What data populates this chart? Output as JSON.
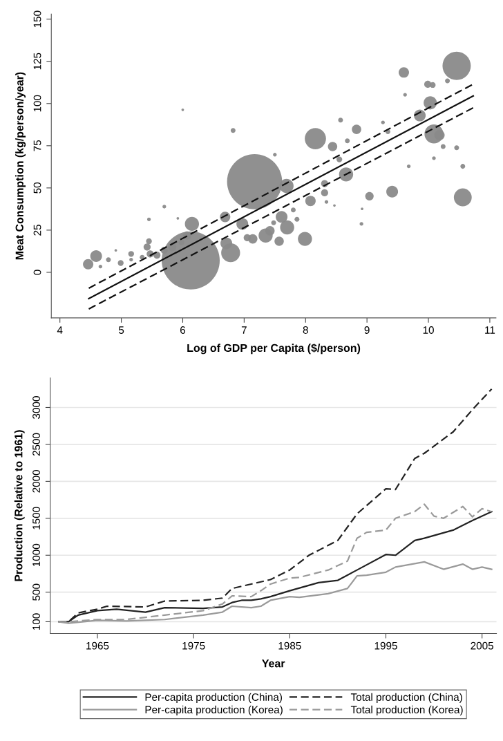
{
  "chart_data": [
    {
      "type": "bubble",
      "xlabel": "Log of GDP per Capita ($/person)",
      "ylabel": "Meat Consumption (kg/person/year)",
      "xlim": [
        3.86,
        11.1
      ],
      "xticks": [
        4,
        5,
        6,
        7,
        8,
        9,
        10,
        11
      ],
      "ylim": [
        -27,
        153
      ],
      "yticks": [
        0,
        25,
        50,
        75,
        100,
        125,
        150
      ],
      "grid": false,
      "legend": false,
      "series": [
        {
          "type": "bubble",
          "color": "#8a8a8a",
          "x": [
            4.46,
            4.59,
            4.66,
            4.79,
            4.91,
            4.99,
            5.16,
            5.16,
            5.34,
            5.42,
            5.45,
            5.45,
            5.47,
            5.58,
            5.7,
            5.7,
            5.83,
            5.92,
            6.0,
            5.98,
            6.07,
            6.15,
            6.13,
            7.17,
            6.69,
            6.82,
            6.78,
            6.71,
            6.97,
            7.05,
            7.14,
            7.35,
            7.42,
            7.48,
            7.5,
            7.57,
            7.61,
            7.7,
            7.69,
            7.8,
            7.86,
            7.99,
            8.08,
            8.16,
            8.31,
            8.31,
            8.34,
            8.44,
            8.47,
            8.57,
            8.55,
            8.66,
            8.68,
            8.83,
            8.91,
            8.92,
            9.04,
            9.26,
            9.34,
            9.41,
            9.6,
            9.62,
            9.68,
            9.86,
            9.99,
            10.07,
            10.03,
            10.09,
            10.18,
            10.09,
            10.24,
            10.31,
            10.46,
            10.46,
            10.56,
            10.56
          ],
          "values": [
            4.8,
            9.6,
            3.4,
            7.5,
            13,
            5.5,
            10.9,
            7.5,
            8.9,
            15,
            18.4,
            31.4,
            10.9,
            10.2,
            38.9,
            13,
            15,
            32,
            96.3,
            17.7,
            21.8,
            28.7,
            7,
            53.7,
            32.8,
            84,
            11.6,
            17.2,
            28.7,
            20.5,
            19.8,
            21.8,
            24.6,
            29.4,
            69.7,
            18.4,
            32.8,
            26.6,
            51.2,
            36.9,
            31.4,
            19.8,
            42.3,
            79.2,
            52.6,
            47.1,
            41.7,
            74.5,
            39.6,
            90.2,
            66.9,
            58,
            77.9,
            84.7,
            28.7,
            37.6,
            45.1,
            88.8,
            83.3,
            47.8,
            118.4,
            105.2,
            62.8,
            92.9,
            111.4,
            111,
            100.4,
            82,
            81.3,
            67.6,
            74.5,
            113.4,
            122.3,
            73.8,
            62.8,
            44.4
          ],
          "sizes": [
            0.032,
            0.041,
            0.004,
            0.007,
            0.002,
            0.01,
            0.01,
            0.004,
            0.007,
            0.015,
            0.01,
            0.004,
            0.015,
            0.015,
            0.004,
            0.015,
            0.021,
            0.002,
            0.002,
            0.01,
            0.021,
            0.059,
            1,
            0.9,
            0.032,
            0.007,
            0.106,
            0.041,
            0.041,
            0.015,
            0.026,
            0.059,
            0.026,
            0.007,
            0.004,
            0.026,
            0.041,
            0.059,
            0.059,
            0.007,
            0.007,
            0.059,
            0.032,
            0.134,
            0.015,
            0.015,
            0.004,
            0.026,
            0.002,
            0.007,
            0.01,
            0.059,
            0.007,
            0.026,
            0.004,
            0.002,
            0.021,
            0.004,
            0.007,
            0.041,
            0.032,
            0.004,
            0.004,
            0.041,
            0.015,
            0.01,
            0.052,
            0.106,
            0.032,
            0.004,
            0.007,
            0.007,
            0.238,
            0.007,
            0.007,
            0.095
          ]
        },
        {
          "type": "line",
          "color": "#111111",
          "line_style": "solid",
          "x": [
            4.47,
            10.73
          ],
          "values": [
            -15.6,
            104.5
          ]
        },
        {
          "type": "line",
          "color": "#111111",
          "line_style": "dashed",
          "x": [
            4.47,
            10.73
          ],
          "values": [
            -9.4,
            111.5
          ]
        },
        {
          "type": "line",
          "color": "#111111",
          "line_style": "dashed",
          "x": [
            4.47,
            10.73
          ],
          "values": [
            -21.7,
            97.5
          ]
        }
      ]
    },
    {
      "type": "line",
      "xlabel": "Year",
      "ylabel": "Production (Relative to 1961)",
      "xlim": [
        1960.1,
        2006.5
      ],
      "xticks": [
        1965,
        1975,
        1985,
        1995,
        2005
      ],
      "ylim": [
        -60,
        3400
      ],
      "yticks": [
        100,
        500,
        1000,
        1500,
        2000,
        2500,
        3000
      ],
      "grid": "y",
      "legend": "bottom",
      "series": [
        {
          "name": "Per-capita production (China)",
          "color": "#222222",
          "line_style": "solid",
          "x": [
            1961,
            1962,
            1963,
            1965,
            1967,
            1970,
            1972,
            1976,
            1978,
            1979,
            1980,
            1981,
            1982,
            1983,
            1985,
            1988,
            1990,
            1992,
            1995,
            1996,
            1998,
            1999,
            2002,
            2004,
            2006
          ],
          "values": [
            100,
            100,
            190,
            250,
            270,
            230,
            290,
            280,
            300,
            360,
            390,
            390,
            410,
            440,
            520,
            630,
            660,
            800,
            1010,
            1000,
            1200,
            1230,
            1340,
            1470,
            1590
          ]
        },
        {
          "name": "Total production (China)",
          "color": "#222222",
          "line_style": "dashed",
          "x": [
            1961,
            1962,
            1963,
            1965,
            1966,
            1970,
            1972,
            1976,
            1978,
            1979,
            1982,
            1983,
            1985,
            1987,
            1990,
            1992,
            1995,
            1996,
            1998,
            1999,
            2002,
            2004,
            2006
          ],
          "values": [
            100,
            100,
            220,
            270,
            310,
            300,
            380,
            390,
            420,
            550,
            640,
            670,
            800,
            1000,
            1200,
            1560,
            1900,
            1890,
            2310,
            2380,
            2670,
            2970,
            3250
          ]
        },
        {
          "name": "Per-capita production (Korea)",
          "color": "#9a9a9a",
          "line_style": "solid",
          "x": [
            1961,
            1962,
            1965,
            1968,
            1972,
            1976,
            1978,
            1979,
            1981,
            1982,
            1983,
            1985,
            1986,
            1989,
            1991,
            1992,
            1993,
            1995,
            1996,
            1999,
            2001,
            2003,
            2004,
            2005,
            2006
          ],
          "values": [
            100,
            80,
            120,
            110,
            130,
            190,
            230,
            310,
            290,
            310,
            390,
            440,
            430,
            480,
            550,
            720,
            730,
            770,
            840,
            910,
            810,
            880,
            810,
            840,
            810
          ]
        },
        {
          "name": "Total production (Korea)",
          "color": "#9a9a9a",
          "line_style": "dashed",
          "x": [
            1961,
            1962,
            1965,
            1968,
            1972,
            1976,
            1978,
            1979,
            1981,
            1982,
            1983,
            1985,
            1986,
            1989,
            1991,
            1992,
            1993,
            1995,
            1996,
            1998,
            1999,
            2000,
            2001,
            2003,
            2004,
            2005,
            2006
          ],
          "values": [
            100,
            100,
            130,
            130,
            190,
            250,
            340,
            450,
            440,
            520,
            610,
            690,
            700,
            800,
            920,
            1230,
            1310,
            1340,
            1500,
            1590,
            1690,
            1530,
            1500,
            1660,
            1520,
            1630,
            1590
          ]
        }
      ]
    }
  ]
}
